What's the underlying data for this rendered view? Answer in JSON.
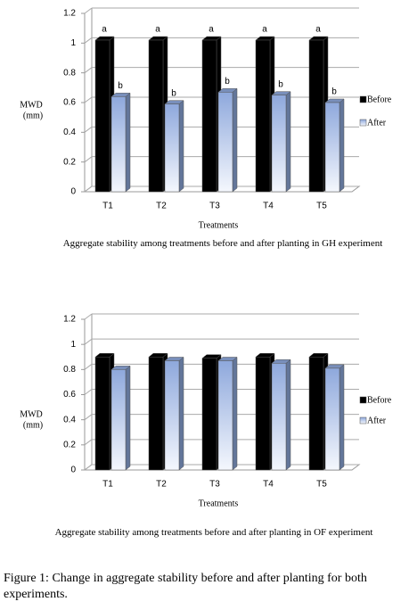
{
  "chart_data": [
    {
      "type": "bar3d",
      "ylabel": "MWD",
      "ylabel_unit": "(mm)",
      "xlabel": "Treatments",
      "caption": "Aggregate stability among treatments before and after planting in GH experiment",
      "categories": [
        "T1",
        "T2",
        "T3",
        "T4",
        "T5"
      ],
      "series": [
        {
          "name": "Before",
          "color": "#000000",
          "values": [
            1.02,
            1.02,
            1.02,
            1.02,
            1.02
          ],
          "labels": [
            "a",
            "a",
            "a",
            "a",
            "a"
          ]
        },
        {
          "name": "After",
          "color": "#8ea8dc",
          "values": [
            0.64,
            0.59,
            0.67,
            0.65,
            0.6
          ],
          "labels": [
            "b",
            "b",
            "b",
            "b",
            "b"
          ]
        }
      ],
      "ylim": [
        0,
        1.2
      ],
      "yticks": [
        0,
        0.2,
        0.4,
        0.6,
        0.8,
        1,
        1.2
      ],
      "grid": true
    },
    {
      "type": "bar3d",
      "ylabel": "MWD",
      "ylabel_unit": "(mm)",
      "xlabel": "Treatments",
      "caption": "Aggregate stability among treatments before and after planting in OF experiment",
      "categories": [
        "T1",
        "T2",
        "T3",
        "T4",
        "T5"
      ],
      "series": [
        {
          "name": "Before",
          "color": "#000000",
          "values": [
            0.9,
            0.9,
            0.89,
            0.9,
            0.9
          ]
        },
        {
          "name": "After",
          "color": "#8ea8dc",
          "values": [
            0.8,
            0.87,
            0.87,
            0.85,
            0.81
          ]
        }
      ],
      "ylim": [
        0,
        1.2
      ],
      "yticks": [
        0,
        0.2,
        0.4,
        0.6,
        0.8,
        1,
        1.2
      ],
      "grid": true
    }
  ],
  "figure": {
    "label": "Figure 1:",
    "text": "Change in aggregate stability before and after planting for both experiments."
  }
}
